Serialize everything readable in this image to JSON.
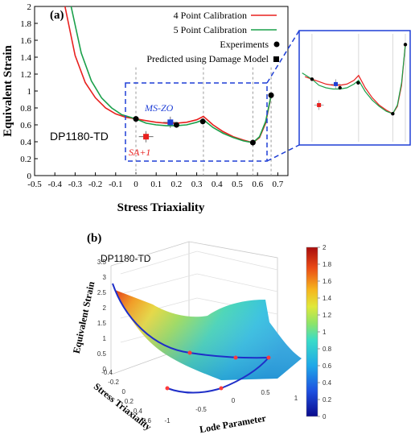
{
  "chart_data": [
    {
      "type": "line",
      "panel_label": "(a)",
      "material_label": "DP1180-TD",
      "xlabel": "Stress Triaxiality",
      "ylabel": "Equivalent Strain",
      "xlim": [
        -0.5,
        0.75
      ],
      "ylim": [
        0,
        2
      ],
      "x_ticks": [
        "-0.5",
        "-0.4",
        "-0.3",
        "-0.2",
        "-0.1",
        "0",
        "0.1",
        "0.2",
        "0.3",
        "0.4",
        "0.5",
        "0.6",
        "0.7"
      ],
      "y_ticks": [
        "0",
        "0.2",
        "0.4",
        "0.6",
        "0.8",
        "1",
        "1.2",
        "1.4",
        "1.6",
        "1.8",
        "2"
      ],
      "vertical_reference_lines": [
        0,
        0.333,
        0.577,
        0.667
      ],
      "legend_position": "top-right",
      "series": [
        {
          "name": "4 Point Calibration",
          "color": "#e8201e",
          "points": [
            [
              -0.35,
              2.0
            ],
            [
              -0.3,
              1.42
            ],
            [
              -0.25,
              1.1
            ],
            [
              -0.2,
              0.92
            ],
            [
              -0.15,
              0.8
            ],
            [
              -0.1,
              0.73
            ],
            [
              -0.05,
              0.69
            ],
            [
              0.0,
              0.67
            ],
            [
              0.05,
              0.65
            ],
            [
              0.1,
              0.63
            ],
            [
              0.15,
              0.62
            ],
            [
              0.2,
              0.62
            ],
            [
              0.25,
              0.63
            ],
            [
              0.3,
              0.66
            ],
            [
              0.333,
              0.7
            ],
            [
              0.38,
              0.6
            ],
            [
              0.43,
              0.52
            ],
            [
              0.48,
              0.46
            ],
            [
              0.53,
              0.42
            ],
            [
              0.577,
              0.39
            ],
            [
              0.61,
              0.45
            ],
            [
              0.64,
              0.62
            ],
            [
              0.667,
              0.95
            ]
          ]
        },
        {
          "name": "5 Point Calibration",
          "color": "#1aa04a",
          "points": [
            [
              -0.32,
              2.0
            ],
            [
              -0.27,
              1.45
            ],
            [
              -0.22,
              1.12
            ],
            [
              -0.17,
              0.92
            ],
            [
              -0.12,
              0.8
            ],
            [
              -0.07,
              0.72
            ],
            [
              0.0,
              0.67
            ],
            [
              0.05,
              0.62
            ],
            [
              0.1,
              0.6
            ],
            [
              0.15,
              0.59
            ],
            [
              0.2,
              0.59
            ],
            [
              0.25,
              0.6
            ],
            [
              0.3,
              0.63
            ],
            [
              0.333,
              0.66
            ],
            [
              0.38,
              0.57
            ],
            [
              0.43,
              0.5
            ],
            [
              0.48,
              0.45
            ],
            [
              0.53,
              0.41
            ],
            [
              0.577,
              0.39
            ],
            [
              0.61,
              0.46
            ],
            [
              0.64,
              0.64
            ],
            [
              0.667,
              0.95
            ]
          ]
        }
      ],
      "experiments": {
        "name": "Experiments",
        "points": [
          [
            0.0,
            0.67
          ],
          [
            0.2,
            0.6
          ],
          [
            0.33,
            0.64
          ],
          [
            0.577,
            0.39
          ],
          [
            0.667,
            0.95
          ]
        ]
      },
      "predicted": {
        "name": "Predicted using Damage Model",
        "points": [
          {
            "label": "MS-ZO",
            "x": 0.17,
            "y": 0.63,
            "color": "#1f3fd6"
          },
          {
            "label": "SA+1",
            "x": 0.05,
            "y": 0.46,
            "color": "#e8201e"
          }
        ]
      }
    },
    {
      "type": "surface",
      "panel_label": "(b)",
      "material_label": "DP1180-TD",
      "xlabel": "Lode Parameter",
      "ylabel": "Stress Triaxiality",
      "zlabel": "Equivalent Strain",
      "x_ticks": [
        "-1",
        "-0.5",
        "0",
        "0.5",
        "1"
      ],
      "y_ticks": [
        "-0.4",
        "-0.2",
        "0",
        "0.2",
        "0.4",
        "0.6"
      ],
      "z_ticks": [
        "0",
        "0.5",
        "1",
        "1.5",
        "2",
        "2.5",
        "3",
        "3.5"
      ],
      "colorbar_ticks": [
        "0",
        "0.2",
        "0.4",
        "0.6",
        "0.8",
        "1",
        "1.2",
        "1.4",
        "1.6",
        "1.8",
        "2"
      ],
      "colorbar_range": [
        0,
        2
      ]
    }
  ]
}
